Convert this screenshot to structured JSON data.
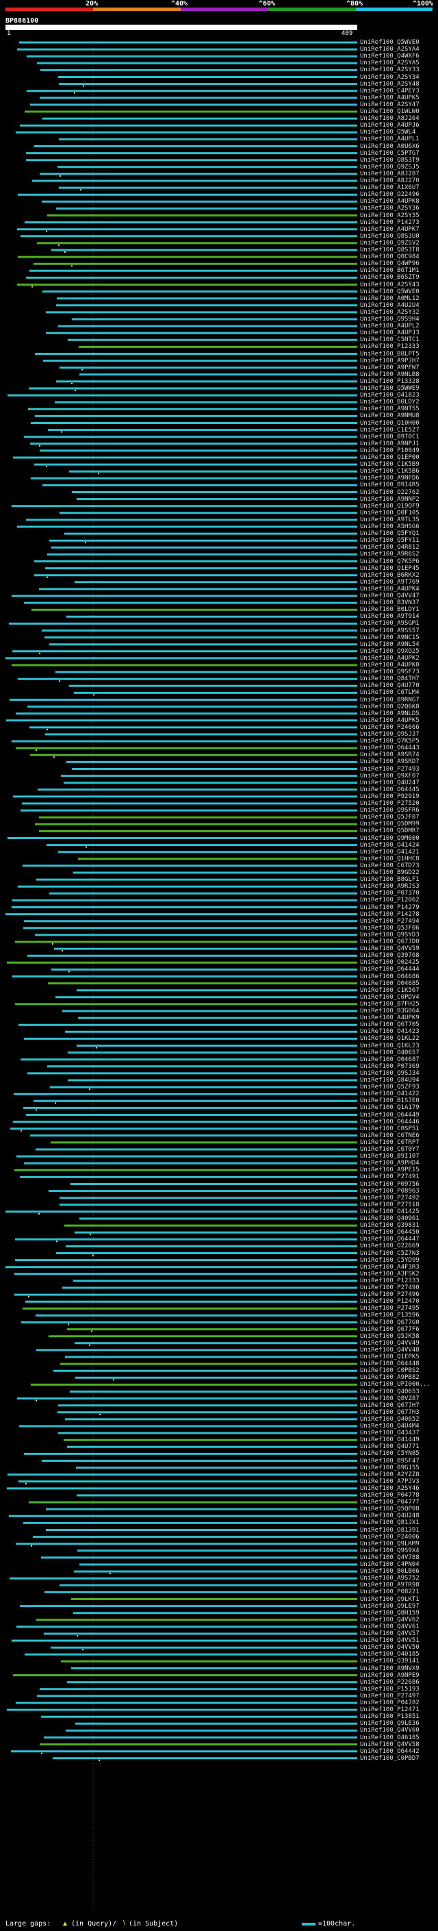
{
  "legend": {
    "ticks": [
      "20%",
      "^40%",
      "^60%",
      "^80%",
      "^100%"
    ],
    "colors": [
      "#e02020",
      "#e08020",
      "#a020c0",
      "#20a020",
      "#20c0e0"
    ]
  },
  "query": {
    "title": "BP886100",
    "start": "1",
    "end": "409"
  },
  "hits": [
    "UniRef100_Q5WVE0",
    "UniRef100_A2SYA4",
    "UniRef100_Q4WXF6",
    "UniRef100_A2SYA5",
    "UniRef100_A2SY33",
    "UniRef100_A2SY34",
    "UniRef100_A2SY48",
    "UniRef100_C4PEY3",
    "UniRef100_A4UPK5",
    "UniRef100_A2SY47",
    "UniRef100_Q1WLW0",
    "UniRef100_A8J264",
    "UniRef100_A4UPJ6",
    "UniRef100_Q5WL4",
    "UniRef100_A4UPL1",
    "UniRef100_A0U6X6",
    "UniRef100_C5PTG7",
    "UniRef100_Q8S3T9",
    "UniRef100_Q9ZSJ5",
    "UniRef100_A8J287",
    "UniRef100_A8J270",
    "UniRef100_A1X6U7",
    "UniRef100_O22496",
    "UniRef100_A4UPK8",
    "UniRef100_A2SY36",
    "UniRef100_A2SY35",
    "UniRef100_P14273",
    "UniRef100_A4UPK7",
    "UniRef100_Q8S3U0",
    "UniRef100_Q9ZSV2",
    "UniRef100_Q8S3T8",
    "UniRef100_Q0C984",
    "UniRef100_Q4WP96",
    "UniRef100_B6T1M1",
    "UniRef100_B6SZT9",
    "UniRef100_A2SY43",
    "UniRef100_Q5WVE0",
    "UniRef100_A0ML12",
    "UniRef100_A4U2U4",
    "UniRef100_A2SY32",
    "UniRef100_Q9S9H4",
    "UniRef100_A4UPL2",
    "UniRef100_A4UPJ3",
    "UniRef100_C5NTC1",
    "UniRef100_P12333",
    "UniRef100_B8LPT5",
    "UniRef100_A9PJH7",
    "UniRef100_A9PFW7",
    "UniRef100_A9NLB8",
    "UniRef100_P13328",
    "UniRef100_Q5WWE9",
    "UniRef100_O41823",
    "UniRef100_B0LDY2",
    "UniRef100_A9NT55",
    "UniRef100_A9NMU8",
    "UniRef100_Q10H00",
    "UniRef100_C1E5Z7",
    "UniRef100_B9T0C1",
    "UniRef100_A9NPJ1",
    "UniRef100_P10049",
    "UniRef100_Q1EP00",
    "UniRef100_C1K5B9",
    "UniRef100_C1K5B6",
    "UniRef100_A9NFD6",
    "UniRef100_B9I4R5",
    "UniRef100_O22762",
    "UniRef100_A9NNP2",
    "UniRef100_Q19QF9",
    "UniRef100_D0F105",
    "UniRef100_A9TL35",
    "UniRef100_A5HSG6",
    "UniRef100_Q5FYQ1",
    "UniRef100_Q5FY11",
    "UniRef100_Q4R812",
    "UniRef100_A9R6S2",
    "UniRef100_Q7K5P6",
    "UniRef100_Q1EP45",
    "UniRef100_B6RKX2",
    "UniRef100_A9T769",
    "UniRef100_A4UPK4",
    "UniRef100_Q4VV47",
    "UniRef100_B3VN37",
    "UniRef100_B0LDY1",
    "UniRef100_A9T914",
    "UniRef100_A9SGM1",
    "UniRef100_A9SS57",
    "UniRef100_A9NC15",
    "UniRef100_A9NL54",
    "UniRef100_Q9XQ25",
    "UniRef100_A4UPK2",
    "UniRef100_A4UPK0",
    "UniRef100_Q9SF73",
    "UniRef100_Q84TH7",
    "UniRef100_Q4U770",
    "UniRef100_C6TLM4",
    "UniRef100_B9RNG7",
    "UniRef100_Q2Q6K8",
    "UniRef100_A9NLD5",
    "UniRef100_A4UPK5",
    "UniRef100_P24666",
    "UniRef100_Q9SJ37",
    "UniRef100_Q7K5P5",
    "UniRef100_O64443",
    "UniRef100_A9SR74",
    "UniRef100_A9SRD7",
    "UniRef100_P27493",
    "UniRef100_Q9XF07",
    "UniRef100_Q4U247",
    "UniRef100_O64445",
    "UniRef100_P92919",
    "UniRef100_P27520",
    "UniRef100_Q9SFR6",
    "UniRef100_Q5JF07",
    "UniRef100_Q5DM99",
    "UniRef100_Q5DMR7",
    "UniRef100_Q9M600",
    "UniRef100_O41424",
    "UniRef100_O41421",
    "UniRef100_Q1HHC8",
    "UniRef100_C6TD73",
    "UniRef100_B9GD22",
    "UniRef100_B8GLF1",
    "UniRef100_A9RJS3",
    "UniRef100_P07370",
    "UniRef100_P12062",
    "UniRef100_P14279",
    "UniRef100_P14278",
    "UniRef100_P27494",
    "UniRef100_Q5JF06",
    "UniRef100_Q9SYD3",
    "UniRef100_Q677D0",
    "UniRef100_Q4VV59",
    "UniRef100_Q39768",
    "UniRef100_O02425",
    "UniRef100_O64444",
    "UniRef100_O04686",
    "UniRef100_O04685",
    "UniRef100_C1K567",
    "UniRef100_C0PDV4",
    "UniRef100_B7FH25",
    "UniRef100_B3G064",
    "UniRef100_A4UPK9",
    "UniRef100_Q6T705",
    "UniRef100_O41423",
    "UniRef100_Q1KL22",
    "UniRef100_Q1KL23",
    "UniRef100_O40657",
    "UniRef100_O04687",
    "UniRef100_P07369",
    "UniRef100_Q9SJ34",
    "UniRef100_Q84U94",
    "UniRef100_Q5ZF93",
    "UniRef100_O41422",
    "UniRef100_B1S7E0",
    "UniRef100_Q1A179",
    "UniRef100_O64449",
    "UniRef100_O64446",
    "UniRef100_C0SP51",
    "UniRef100_C6TNE6",
    "UniRef100_C6TRP7",
    "UniRef100_C6T0Y7",
    "UniRef100_B9I107",
    "UniRef100_A9PHD4",
    "UniRef100_A9PE15",
    "UniRef100_P27491",
    "UniRef100_P09756",
    "UniRef100_P08963",
    "UniRef100_P27492",
    "UniRef100_P27518",
    "UniRef100_O41425",
    "UniRef100_Q40961",
    "UniRef100_Q39831",
    "UniRef100_O64450",
    "UniRef100_O64447",
    "UniRef100_O22669",
    "UniRef100_C5Z7N3",
    "UniRef100_C5YD99",
    "UniRef100_A4F3R3",
    "UniRef100_A3FSK2",
    "UniRef100_P12333",
    "UniRef100_P27490",
    "UniRef100_P27496",
    "UniRef100_P12470",
    "UniRef100_P27495",
    "UniRef100_P13596",
    "UniRef100_Q677G0",
    "UniRef100_Q677F6",
    "UniRef100_Q5JK58",
    "UniRef100_Q4VV49",
    "UniRef100_Q4VV48",
    "UniRef100_Q1EPK5",
    "UniRef100_O64448",
    "UniRef100_C0PBS2",
    "UniRef100_A9PB82",
    "UniRef100_UPI000...",
    "UniRef100_Q40653",
    "UniRef100_Q8VZ87",
    "UniRef100_Q677H7",
    "UniRef100_Q677H3",
    "UniRef100_Q40652",
    "UniRef100_Q4U4M4",
    "UniRef100_O43437",
    "UniRef100_O41449",
    "UniRef100_Q4U771",
    "UniRef100_C5YN85",
    "UniRef100_B9SF47",
    "UniRef100_B9G155",
    "UniRef100_A2YZZ8",
    "UniRef100_A7PJV3",
    "UniRef100_A2SY46",
    "UniRef100_P04778",
    "UniRef100_P04777",
    "UniRef100_Q5QP08",
    "UniRef100_Q4U248",
    "UniRef100_Q81JX1",
    "UniRef100_O81391",
    "UniRef100_P24006",
    "UniRef100_Q9LKM9",
    "UniRef100_Q9S9X4",
    "UniRef100_Q4V788",
    "UniRef100_C4PN04",
    "UniRef100_B0LB06",
    "UniRef100_A9S752",
    "UniRef100_A9TR98",
    "UniRef100_P08221",
    "UniRef100_Q9LKT1",
    "UniRef100_Q9LE97",
    "UniRef100_Q8H159",
    "UniRef100_Q4VV62",
    "UniRef100_Q4VV61",
    "UniRef100_Q4VV57",
    "UniRef100_Q4VV51",
    "UniRef100_Q4VV50",
    "UniRef100_O40185",
    "UniRef100_Q39141",
    "UniRef100_A9NVX9",
    "UniRef100_A9NPE9",
    "UniRef100_P22686",
    "UniRef100_P15193",
    "UniRef100_P27497",
    "UniRef100_P04782",
    "UniRef100_P12471",
    "UniRef100_P13851",
    "UniRef100_Q9LE36",
    "UniRef100_Q4VV60",
    "UniRef100_O46185",
    "UniRef100_Q4VV58",
    "UniRef100_O64442",
    "UniRef100_C0PBD7"
  ],
  "footer": {
    "gaps_label": "Large gaps: ",
    "gaps_text": "(in Query)/",
    "gaps_text2": "(in Subject)",
    "scale_label": "=100char."
  }
}
